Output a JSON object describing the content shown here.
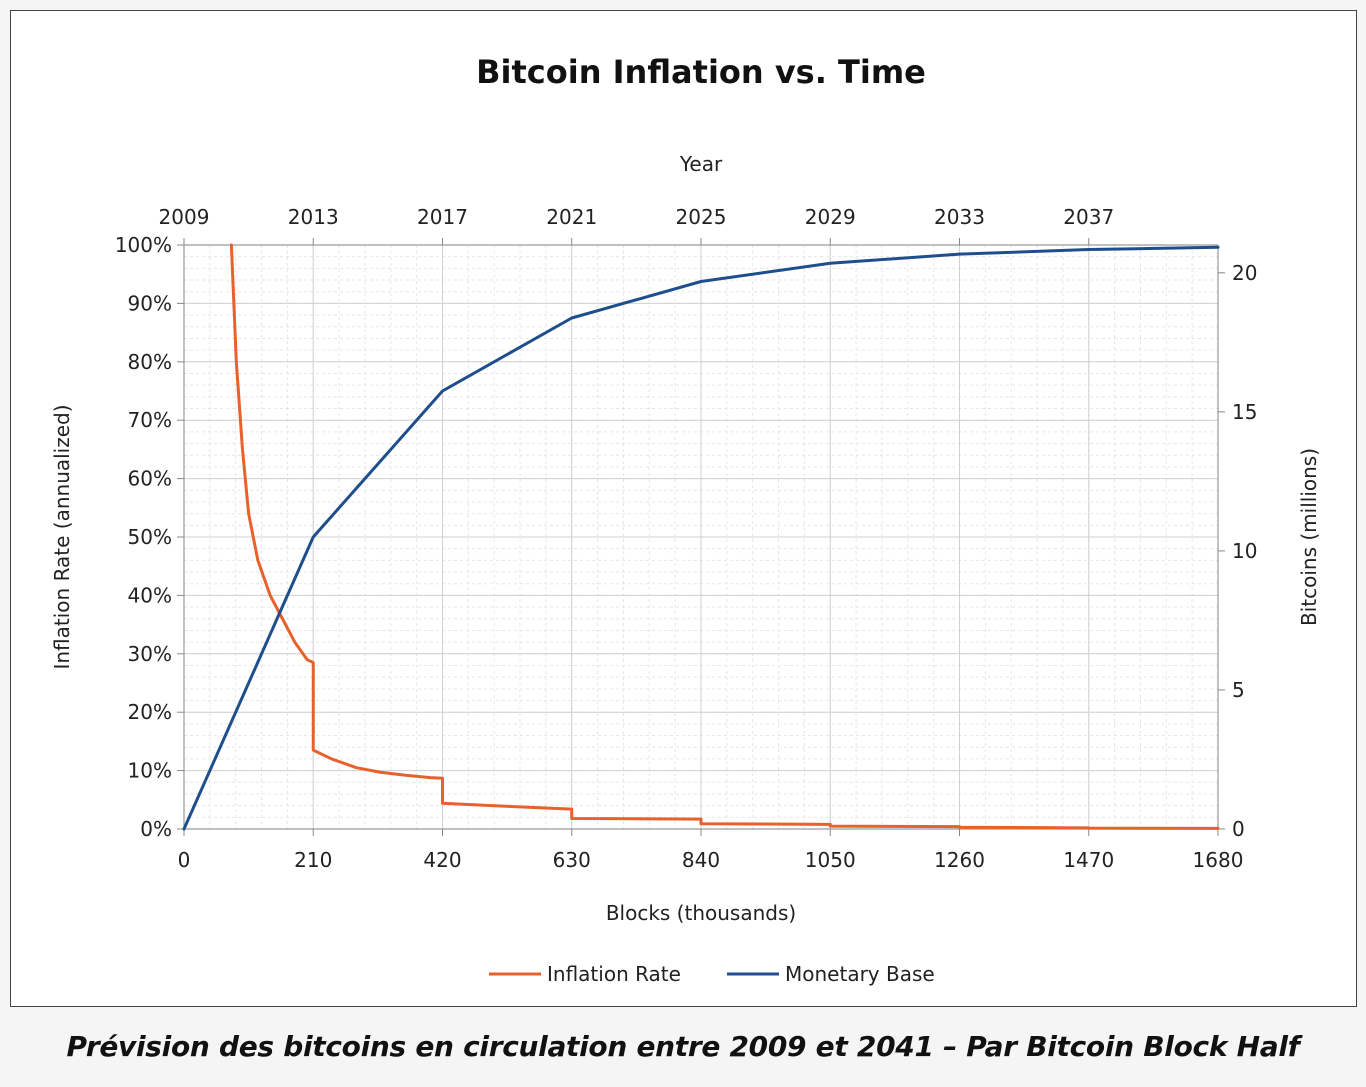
{
  "caption": "Prévision des bitcoins en circulation entre 2009 et 2041 – Par Bitcoin Block Half",
  "chart_data": {
    "type": "line",
    "title": "Bitcoin Inflation vs. Time",
    "xlabel": "Blocks (thousands)",
    "x_top_label": "Year",
    "ylabel": "Inflation Rate (annualized)",
    "y2label": "Bitcoins (millions)",
    "xlim": [
      0,
      1680
    ],
    "ylim": [
      0,
      100
    ],
    "y2lim": [
      0,
      21
    ],
    "x_ticks": [
      0,
      210,
      420,
      630,
      840,
      1050,
      1260,
      1470,
      1680
    ],
    "x_tick_labels": [
      "0",
      "210",
      "420",
      "630",
      "840",
      "1050",
      "1260",
      "1470",
      "1680"
    ],
    "x_top_ticks": [
      0,
      210,
      420,
      630,
      840,
      1050,
      1260,
      1470
    ],
    "x_top_tick_labels": [
      "2009",
      "2013",
      "2017",
      "2021",
      "2025",
      "2029",
      "2033",
      "2037"
    ],
    "y_ticks": [
      0,
      10,
      20,
      30,
      40,
      50,
      60,
      70,
      80,
      90,
      100
    ],
    "y_tick_labels": [
      "0%",
      "10%",
      "20%",
      "30%",
      "40%",
      "50%",
      "60%",
      "70%",
      "80%",
      "90%",
      "100%"
    ],
    "y2_ticks": [
      0,
      5,
      10,
      15,
      20
    ],
    "y2_tick_labels": [
      "0",
      "5",
      "10",
      "15",
      "20"
    ],
    "grid": true,
    "legend_position": "bottom-center",
    "series": [
      {
        "name": "Inflation Rate",
        "axis": "left",
        "color": "#e8612c",
        "x": [
          77,
          85,
          95,
          105,
          120,
          140,
          160,
          180,
          200,
          210,
          210,
          240,
          280,
          320,
          360,
          400,
          420,
          420,
          500,
          630,
          630,
          840,
          840,
          1050,
          1050,
          1260,
          1260,
          1470,
          1470,
          1680
        ],
        "y": [
          100,
          80,
          65,
          54,
          46,
          40,
          36,
          32,
          29,
          28.5,
          13.5,
          12,
          10.5,
          9.7,
          9.2,
          8.8,
          8.7,
          4.4,
          4.0,
          3.4,
          1.8,
          1.7,
          0.9,
          0.8,
          0.5,
          0.4,
          0.3,
          0.2,
          0.15,
          0.1
        ]
      },
      {
        "name": "Monetary Base",
        "axis": "right",
        "color": "#1f4e8c",
        "x": [
          0,
          210,
          420,
          630,
          840,
          1050,
          1260,
          1470,
          1680
        ],
        "y": [
          0,
          10.5,
          15.75,
          18.375,
          19.6875,
          20.34375,
          20.671875,
          20.8359375,
          20.91796875
        ]
      }
    ]
  }
}
